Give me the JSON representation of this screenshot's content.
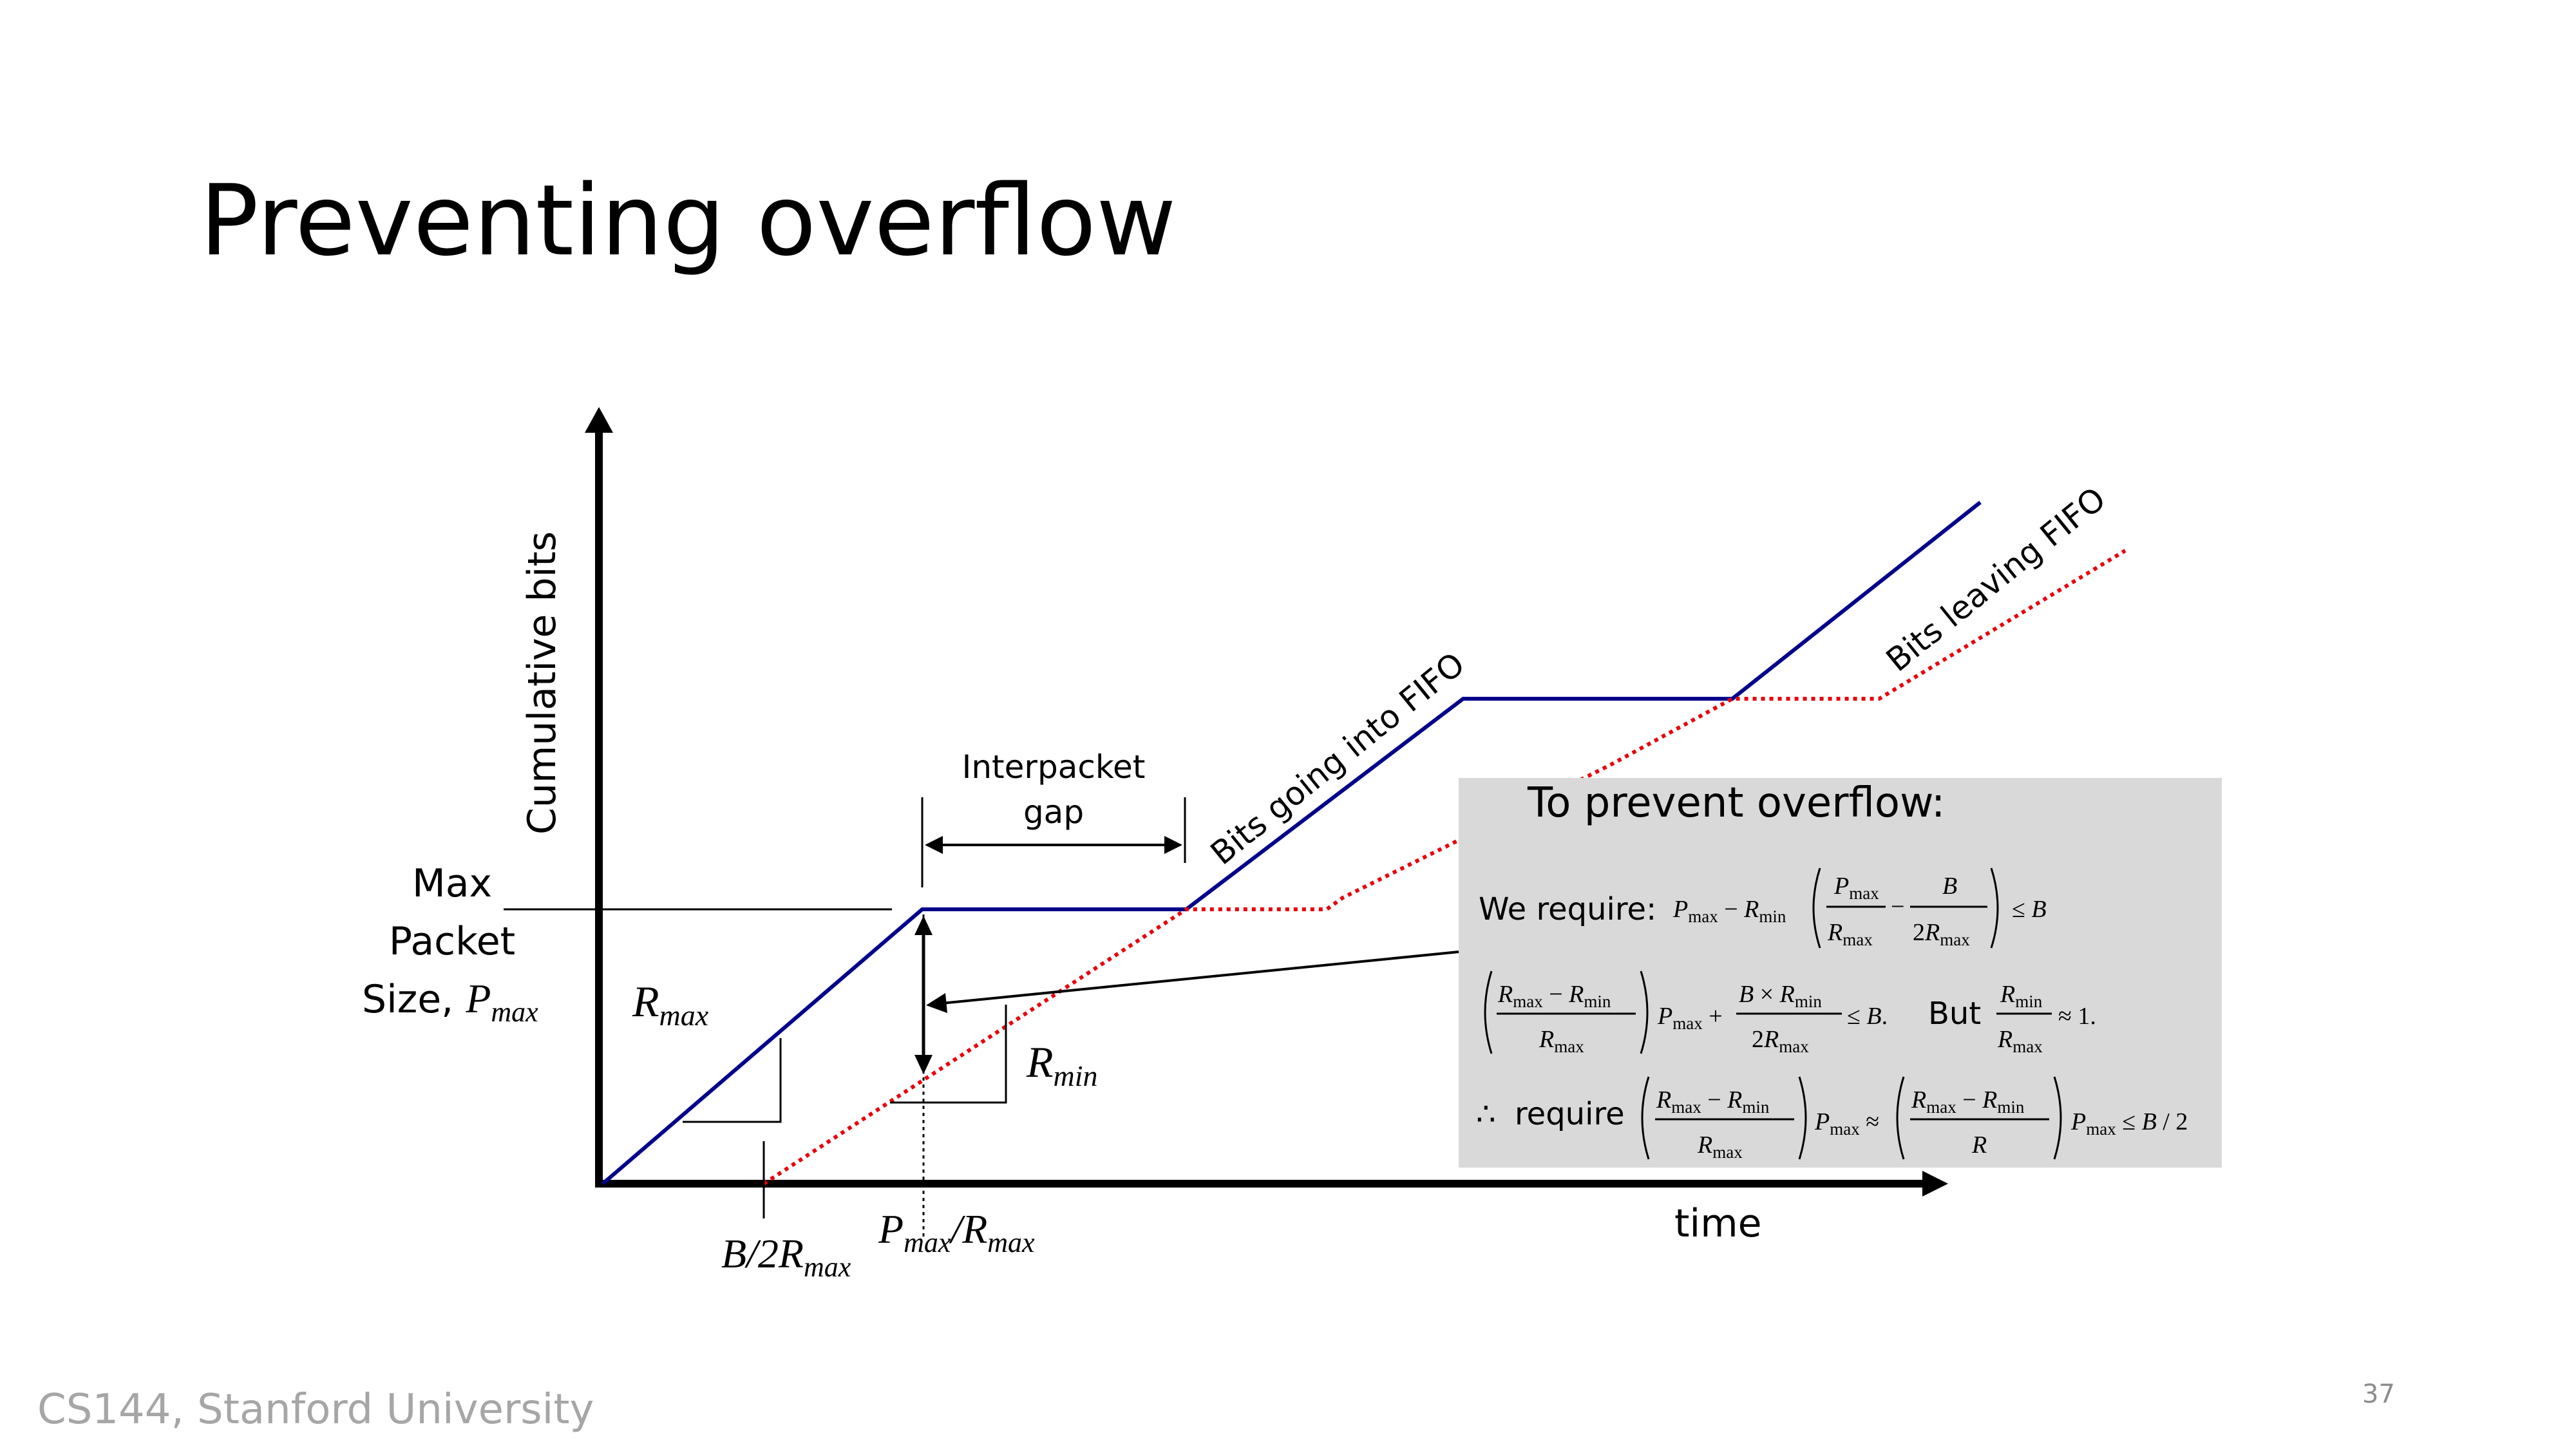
{
  "slide": {
    "title": "Preventing overflow",
    "footer": "CS144, Stanford University",
    "page_number": "37"
  },
  "diagram": {
    "y_axis_label": "Cumulative bits",
    "x_axis_label": "time",
    "max_packet_label": [
      "Max",
      "Packet",
      "Size, "
    ],
    "p_max": "P",
    "sub_max": "max",
    "sub_min": "min",
    "r_max": "R",
    "r_min": "R",
    "interpacket_gap": [
      "Interpacket",
      "gap"
    ],
    "bits_in": "Bits going into FIFO",
    "bits_out": "Bits leaving FIFO",
    "tick_b": "B/2R",
    "tick_p": "P",
    "tick_p_slash": "/R",
    "colors": {
      "in": "#00008b",
      "out": "#e8000b",
      "box": "#d9d9d9"
    }
  },
  "callout": {
    "heading": "To prevent overflow:",
    "we_require": "We require:",
    "but": "But",
    "therefore": "∴",
    "require": "require"
  }
}
